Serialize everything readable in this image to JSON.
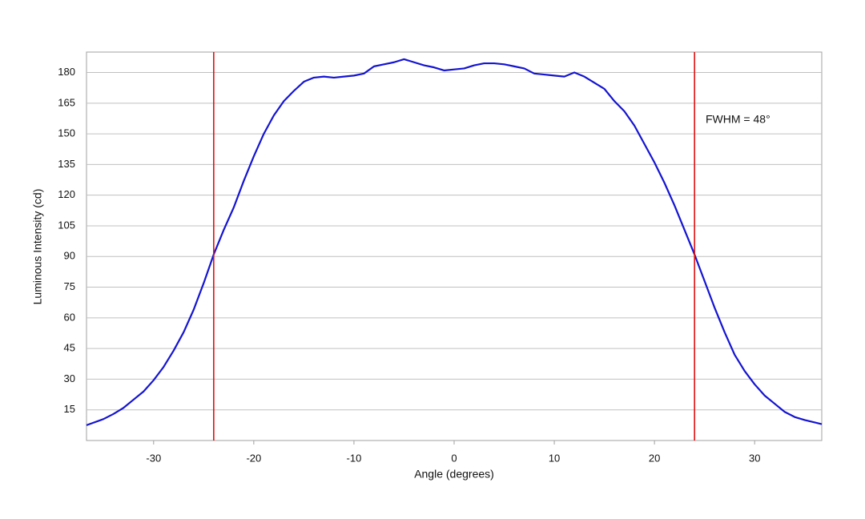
{
  "chart_data": {
    "type": "line",
    "x_label": "Angle (degrees)",
    "y_label": "Luminous Intensity (cd)",
    "x": [
      -36.7,
      -35,
      -34,
      -33,
      -32,
      -31,
      -30,
      -29,
      -28,
      -27,
      -26,
      -25,
      -24,
      -23,
      -22,
      -21,
      -20,
      -19,
      -18,
      -17,
      -16,
      -15,
      -14,
      -13,
      -12,
      -11,
      -10,
      -9,
      -8,
      -7,
      -6,
      -5,
      -4,
      -3,
      -2,
      -1,
      0,
      1,
      2,
      3,
      4,
      5,
      6,
      7,
      8,
      9,
      10,
      11,
      12,
      13,
      14,
      15,
      16,
      17,
      18,
      19,
      20,
      21,
      22,
      23,
      24,
      25,
      26,
      27,
      28,
      29,
      30,
      31,
      32,
      33,
      34,
      35,
      36.7
    ],
    "series": [
      {
        "color": "#1414d2",
        "values": [
          7.5,
          10.5,
          13,
          16,
          20,
          24,
          29.5,
          36,
          44,
          53,
          64,
          77,
          91,
          103,
          114,
          127,
          139,
          150,
          159,
          166,
          171,
          175.5,
          177.5,
          178,
          177.5,
          178,
          178.5,
          179.5,
          183,
          184,
          185,
          186.5,
          185,
          183.5,
          182.5,
          181,
          181.5,
          182,
          183.5,
          184.5,
          184.5,
          184,
          183,
          182,
          179.5,
          179,
          178.5,
          178,
          180,
          178,
          175,
          172,
          166,
          161,
          154,
          145,
          136,
          126,
          115,
          103,
          91,
          78,
          65,
          53,
          42,
          34,
          27.5,
          22,
          18,
          14,
          11.5,
          10,
          8
        ]
      }
    ],
    "reference_lines": {
      "values": [
        -24,
        24
      ],
      "color": "#e01010"
    },
    "annotation": "FWHM = 48°",
    "xlim": [
      -36.7,
      36.7
    ],
    "xticks": [
      -30,
      -20,
      -10,
      0,
      10,
      20,
      30
    ],
    "ylim": [
      0,
      190
    ],
    "yticks": [
      15,
      30,
      45,
      60,
      75,
      90,
      105,
      120,
      135,
      150,
      165,
      180
    ],
    "grid": true
  }
}
